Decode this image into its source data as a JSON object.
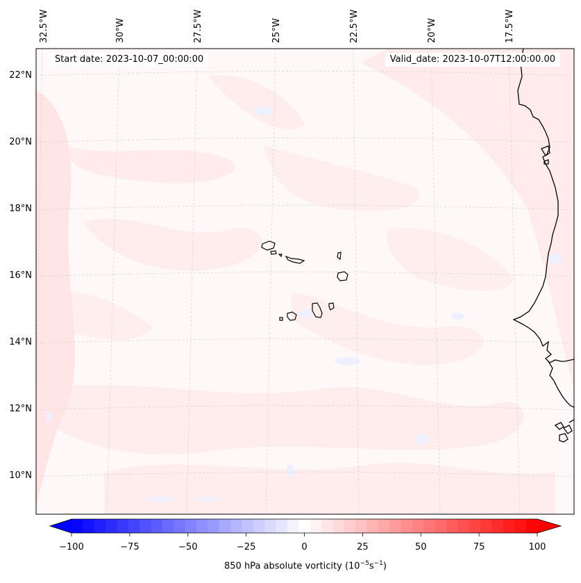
{
  "header": {
    "start_label": "Start date:",
    "start_value": "2023-10-07_00:00:00",
    "valid_label": "Valid_date:",
    "valid_value": "2023-10-07T12:00:00.00"
  },
  "map": {
    "lon_labels": [
      "32.5°W",
      "30°W",
      "27.5°W",
      "25°W",
      "22.5°W",
      "20°W",
      "17.5°W"
    ],
    "lat_labels": [
      "22°N",
      "20°N",
      "18°N",
      "16°N",
      "14°N",
      "12°N",
      "10°N"
    ],
    "features": [
      "Cape Verde islands",
      "West African coastline"
    ]
  },
  "colorbar": {
    "label_main": "850 hPa absolute vorticity (10",
    "label_exp1": "−5",
    "label_mid": "s",
    "label_exp2": "−1",
    "label_end": ")",
    "ticks": [
      "−100",
      "−75",
      "−50",
      "−25",
      "0",
      "25",
      "50",
      "75",
      "100"
    ],
    "min": -100,
    "max": 100,
    "levels": 41,
    "colors": {
      "low": "#0000ff",
      "mid": "#ffffff",
      "high": "#ff0000"
    }
  }
}
